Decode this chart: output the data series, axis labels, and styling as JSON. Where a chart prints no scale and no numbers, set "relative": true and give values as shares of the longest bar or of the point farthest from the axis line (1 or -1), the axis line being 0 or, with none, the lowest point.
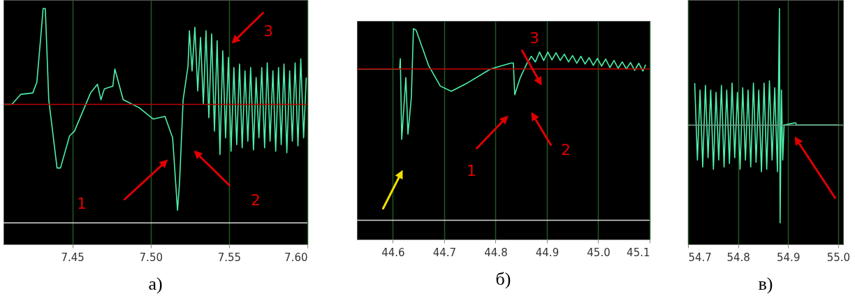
{
  "chart_data": [
    {
      "type": "line",
      "title": "а)",
      "relative": true,
      "grid": "x",
      "color": "#4ef0a8",
      "xlim": [
        7.406,
        7.6
      ],
      "xticks": [
        7.45,
        {
          "value": 7.5,
          "label": "7.50"
        },
        7.55,
        {
          "value": 7.6,
          "label": "7.60"
        }
      ],
      "ref_lines": [
        {
          "axis": "y",
          "value": 0,
          "color": "#c00000"
        },
        {
          "axis": "y",
          "value": -1.12,
          "color": "#d9d9d9"
        }
      ],
      "annotations": [
        "1",
        "2",
        "3"
      ],
      "x": [
        7.406,
        7.4113,
        7.4171,
        7.4247,
        7.4273,
        7.4304,
        7.4313,
        7.4327,
        7.4349,
        7.4402,
        7.4424,
        7.4482,
        7.4513,
        7.4616,
        7.466,
        7.4682,
        7.4704,
        7.4758,
        7.4771,
        7.4824,
        7.4927,
        7.5016,
        7.5091,
        7.514,
        7.5171,
        7.5184,
        7.5207,
        7.5238,
        7.5247,
        7.5264,
        7.5282,
        7.53,
        7.5318,
        7.5336,
        7.5353,
        7.5371,
        7.5389,
        7.5407,
        7.5424,
        7.5442,
        7.546,
        7.5478,
        7.5496,
        7.5513,
        7.5531,
        7.5549,
        7.5567,
        7.5584,
        7.5602,
        7.562,
        7.5638,
        7.5656,
        7.5673,
        7.5691,
        7.5709,
        7.5727,
        7.5744,
        7.5762,
        7.578,
        7.5798,
        7.5816,
        7.5833,
        7.5851,
        7.5869,
        7.5887,
        7.5904,
        7.5922,
        7.594,
        7.5958,
        7.5976,
        7.5993
      ],
      "values": [
        0,
        0,
        0.095,
        0.108,
        0.209,
        0.741,
        0.905,
        0.905,
        0.044,
        -0.601,
        -0.601,
        -0.297,
        -0.253,
        0.108,
        0.19,
        0.044,
        0.146,
        0.171,
        0.335,
        0.044,
        -0.032,
        -0.139,
        -0.114,
        -0.316,
        -1,
        -0.741,
        0.044,
        0.361,
        0.696,
        0.316,
        0.728,
        0.127,
        0.633,
        0,
        0.696,
        -0.127,
        0.665,
        -0.253,
        0.601,
        -0.475,
        0.506,
        -0.316,
        0.443,
        -0.443,
        0.348,
        -0.38,
        0.38,
        -0.411,
        0.316,
        -0.348,
        0.348,
        -0.43,
        0.253,
        -0.316,
        0.348,
        -0.411,
        0.392,
        -0.348,
        0.316,
        -0.443,
        0.348,
        -0.38,
        0.38,
        -0.456,
        0.316,
        -0.348,
        0.392,
        -0.392,
        0.43,
        -0.316,
        0.253
      ]
    },
    {
      "type": "line",
      "title": "б)",
      "relative": true,
      "grid": "x",
      "color": "#4ef0a8",
      "xlim": [
        44.53,
        45.1
      ],
      "xticks": [
        44.6,
        44.7,
        44.8,
        44.9,
        {
          "value": 45,
          "label": "45.0"
        },
        45.1
      ],
      "ref_lines": [
        {
          "axis": "y",
          "value": 0,
          "color": "#c00000"
        },
        {
          "axis": "y",
          "value": -2.15,
          "color": "#d9d9d9"
        }
      ],
      "annotations": [
        "1",
        "2",
        "3"
      ],
      "x": [
        44.5313,
        44.6132,
        44.6145,
        44.6172,
        44.6253,
        44.6293,
        44.636,
        44.64,
        44.6454,
        44.6696,
        44.6924,
        44.7139,
        44.7461,
        44.7903,
        44.8306,
        44.8346,
        44.8373,
        44.8481,
        44.8615,
        44.8695,
        44.8776,
        44.8856,
        44.8937,
        44.9017,
        44.9098,
        44.9178,
        44.9259,
        44.9339,
        44.942,
        44.95,
        44.9581,
        44.9661,
        44.9742,
        44.9822,
        44.9903,
        44.9983,
        45.0064,
        45.0144,
        45.0225,
        45.0306,
        45.0386,
        45.0467,
        45.0547,
        45.0628,
        45.0708,
        45.0789,
        45.0869,
        45.0923
      ],
      "values": [
        0,
        0,
        0.146,
        -1,
        -0.122,
        -0.927,
        -0.402,
        0.573,
        0.549,
        0.049,
        -0.244,
        -0.317,
        -0.195,
        0,
        0.085,
        0.085,
        -0.366,
        -0.122,
        0.085,
        0.18,
        0.1,
        0.24,
        0.12,
        0.24,
        0.13,
        0.23,
        0.12,
        0.21,
        0.1,
        0.19,
        0.08,
        0.18,
        0.07,
        0.16,
        0.05,
        0.15,
        0.04,
        0.14,
        0.02,
        0.12,
        0.01,
        0.1,
        0,
        0.09,
        -0.02,
        0.08,
        -0.03,
        0.06
      ]
    },
    {
      "type": "line",
      "title": "в)",
      "relative": true,
      "grid": "x",
      "color": "#4ef0a8",
      "xlim": [
        54.7,
        55.01
      ],
      "xticks": [
        {
          "value": 54.7,
          "label": "54.7"
        },
        54.8,
        54.9,
        {
          "value": 55,
          "label": "55.0"
        }
      ],
      "ref_lines": [
        {
          "axis": "y",
          "value": 0,
          "color": "#6f9f86"
        }
      ],
      "x": [
        54.7133,
        54.7187,
        54.724,
        54.7293,
        54.7347,
        54.74,
        54.7453,
        54.7507,
        54.756,
        54.7613,
        54.7667,
        54.772,
        54.7773,
        54.7827,
        54.788,
        54.7933,
        54.7987,
        54.804,
        54.8093,
        54.8147,
        54.82,
        54.8253,
        54.8307,
        54.836,
        54.8413,
        54.8467,
        54.852,
        54.8573,
        54.8627,
        54.868,
        54.8733,
        54.8787,
        54.8827,
        54.884,
        54.8867,
        54.8893,
        54.892,
        54.9147,
        54.9173,
        55.0
      ],
      "values": [
        0.36,
        -0.3,
        0.3,
        -0.36,
        0.34,
        -0.28,
        0.3,
        -0.38,
        0.28,
        -0.3,
        0.34,
        -0.36,
        0.3,
        -0.33,
        0.36,
        -0.28,
        0.28,
        -0.38,
        0.32,
        -0.3,
        0.3,
        -0.36,
        0.36,
        -0.32,
        0.3,
        -0.4,
        0.36,
        -0.38,
        0.38,
        -0.3,
        0.32,
        -0.4,
        1,
        -0.84,
        0.3,
        -0.3,
        0,
        0.02,
        0,
        0
      ]
    }
  ]
}
